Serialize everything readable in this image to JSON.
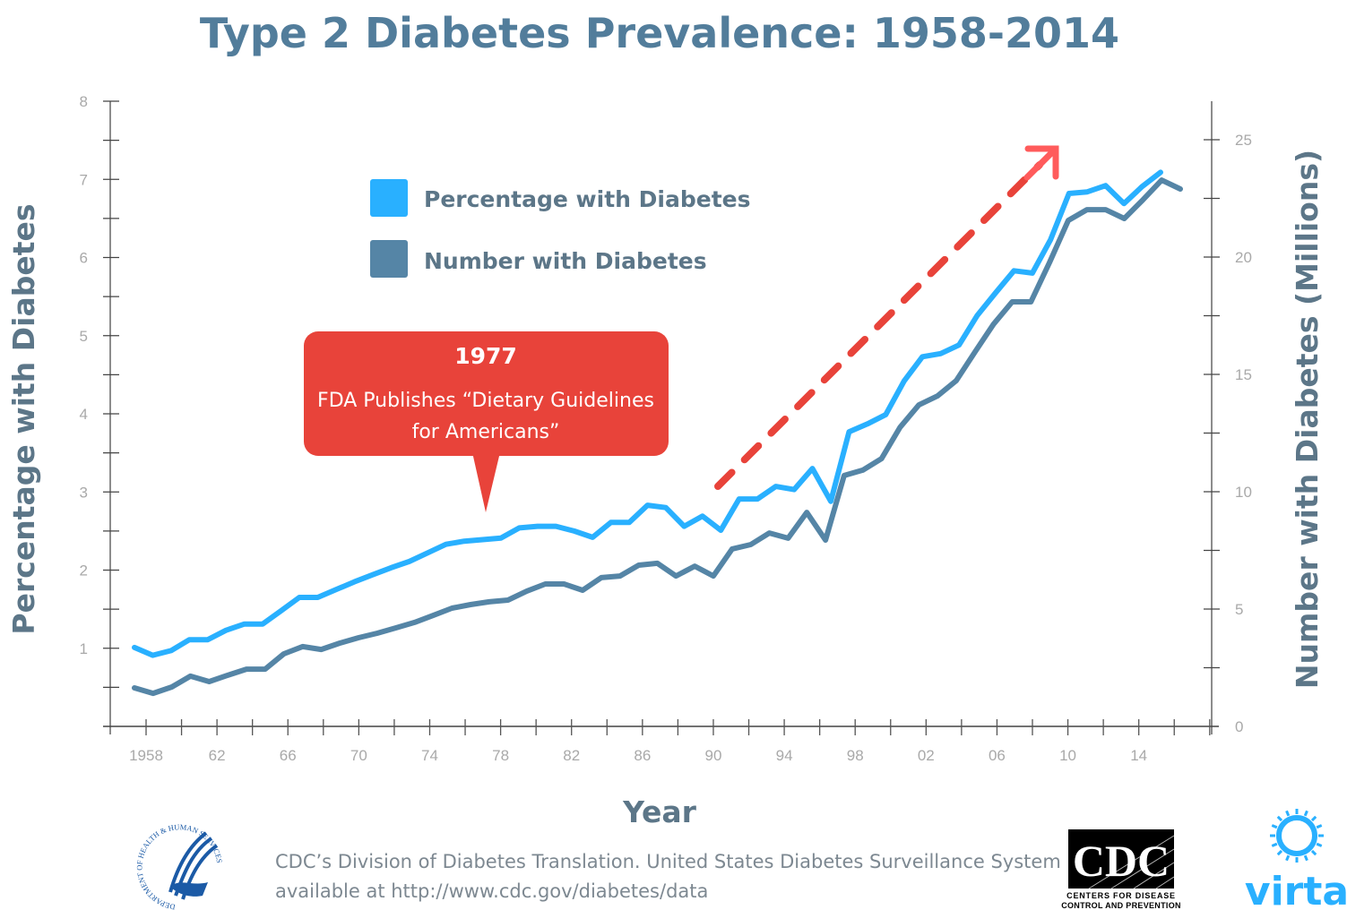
{
  "chart_data": {
    "type": "line",
    "title": "Type 2 Diabetes Prevalence: 1958-2014",
    "xlabel": "Year",
    "ylabel_left": "Percentage with Diabetes",
    "ylabel_right": "Number with Diabetes (Millions)",
    "x_tick_labels": [
      "1958",
      "62",
      "66",
      "70",
      "74",
      "78",
      "82",
      "86",
      "90",
      "94",
      "98",
      "02",
      "06",
      "10",
      "14"
    ],
    "y_left_tick_labels": [
      "1",
      "2",
      "3",
      "4",
      "5",
      "6",
      "7",
      "8"
    ],
    "y_right_tick_labels": [
      "0",
      "5",
      "10",
      "15",
      "20",
      "25"
    ],
    "ylim_left": [
      0,
      8
    ],
    "ylim_right": [
      0,
      26.5
    ],
    "x_start_year": 1958,
    "grid": false,
    "legend_placement": "top-left",
    "series": [
      {
        "name": "Percentage with Diabetes",
        "axis": "left",
        "color": "#29b0ff",
        "values": [
          1.01,
          0.91,
          0.97,
          1.11,
          1.11,
          1.23,
          1.31,
          1.31,
          1.48,
          1.65,
          1.65,
          1.75,
          1.85,
          1.94,
          2.03,
          2.11,
          2.22,
          2.33,
          2.37,
          2.39,
          2.41,
          2.54,
          2.56,
          2.56,
          2.5,
          2.42,
          2.61,
          2.61,
          2.83,
          2.8,
          2.56,
          2.69,
          2.51,
          2.91,
          2.91,
          3.07,
          3.03,
          3.3,
          2.88,
          3.77,
          3.87,
          3.99,
          4.42,
          4.73,
          4.77,
          4.88,
          5.26,
          5.55,
          5.83,
          5.8,
          6.23,
          6.82,
          6.84,
          6.92,
          6.69,
          6.91,
          7.09
        ]
      },
      {
        "name": "Number with Diabetes",
        "axis": "right",
        "color": "#5585a6",
        "values": [
          1.64,
          1.41,
          1.68,
          2.14,
          1.91,
          2.18,
          2.44,
          2.44,
          3.09,
          3.4,
          3.28,
          3.55,
          3.78,
          3.97,
          4.2,
          4.43,
          4.73,
          5.04,
          5.19,
          5.31,
          5.38,
          5.76,
          6.07,
          6.07,
          5.8,
          6.34,
          6.41,
          6.87,
          6.95,
          6.41,
          6.83,
          6.41,
          7.56,
          7.75,
          8.24,
          8.02,
          9.12,
          7.94,
          10.69,
          10.92,
          11.41,
          12.75,
          13.7,
          14.08,
          14.73,
          15.95,
          17.14,
          18.09,
          18.09,
          19.77,
          21.56,
          22.02,
          22.02,
          21.64,
          22.44,
          23.28,
          22.9
        ]
      }
    ],
    "annotation": {
      "year": "1977",
      "text_line1": "FDA Publishes “Dietary Guidelines",
      "text_line2": "for Americans”",
      "color": "#e8433a"
    },
    "trend_arrow_color": "#e8433a"
  },
  "footer": {
    "source_line1": "CDC’s Division of Diabetes Translation. United States Diabetes Surveillance System",
    "source_line2": "available at http://www.cdc.gov/diabetes/data",
    "cdc_logo_text": "CDC",
    "cdc_logo_sub1": "CENTERS FOR DISEASE",
    "cdc_logo_sub2": "CONTROL AND PREVENTION",
    "virta_logo_text": "virta",
    "hhs_logo_text": "DEPARTMENT OF HEALTH & HUMAN SERVICES USA"
  }
}
